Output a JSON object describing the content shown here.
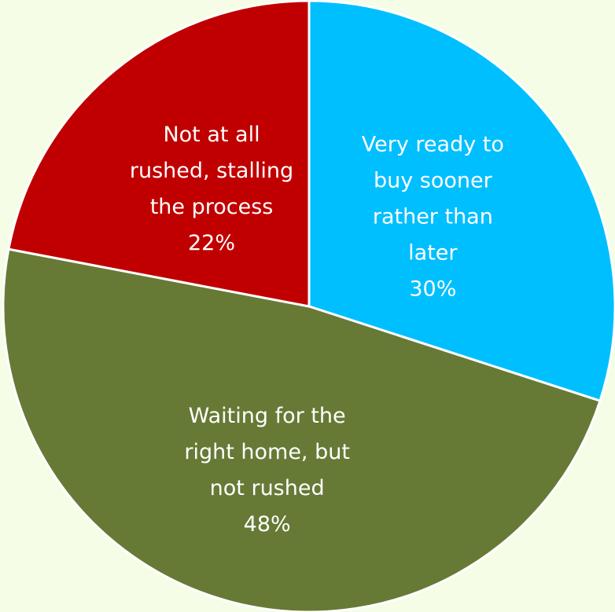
{
  "chart_data": {
    "type": "pie",
    "title": "",
    "slices": [
      {
        "label_lines": [
          "Very ready to",
          "buy sooner",
          "rather than",
          "later"
        ],
        "value_label": "30%",
        "value": 30,
        "color": "#00bfff"
      },
      {
        "label_lines": [
          "Waiting for the",
          "right home, but",
          "not rushed"
        ],
        "value_label": "48%",
        "value": 48,
        "color": "#667a35"
      },
      {
        "label_lines": [
          "Not at all",
          "rushed, stalling",
          "the process"
        ],
        "value_label": "22%",
        "value": 22,
        "color": "#c00000"
      }
    ],
    "start_angle_deg": 0,
    "direction": "clockwise",
    "slice_border_color": "#ffffff",
    "background": "#f5fde7"
  }
}
